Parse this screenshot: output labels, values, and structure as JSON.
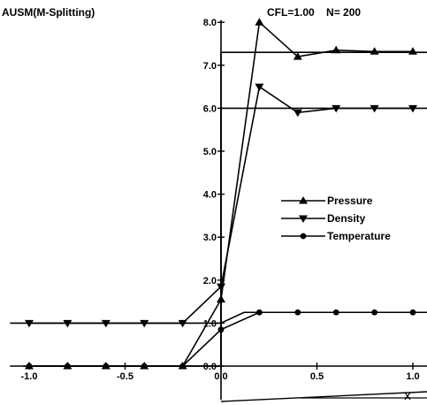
{
  "chart_data": {
    "type": "line",
    "title": "AUSM(M-Splitting)",
    "subtitle": "CFL=1.00    N= 200",
    "xlim": [
      -1.0,
      1.0
    ],
    "ylim": [
      0.0,
      8.0
    ],
    "x_ticks": [
      "-1.0",
      "-0.5",
      "0.0",
      "0.5",
      "1.0"
    ],
    "y_ticks": [
      "0.0",
      "1.0",
      "2.0",
      "3.0",
      "4.0",
      "5.0",
      "6.0",
      "7.0",
      "8.0"
    ],
    "exact": {
      "pressure": [
        [
          -1.0,
          0.0
        ],
        [
          -0.2,
          0.0
        ],
        [
          0.0,
          0.0
        ],
        [
          0.0,
          7.3
        ],
        [
          1.1,
          7.3
        ]
      ],
      "density": [
        [
          -1.1,
          1.0
        ],
        [
          0.0,
          1.0
        ],
        [
          0.0,
          6.0
        ],
        [
          1.1,
          6.0
        ]
      ],
      "temperature": [
        [
          -1.1,
          0.0
        ],
        [
          -0.2,
          0.0
        ],
        [
          0.0,
          0.0
        ],
        [
          0.0,
          1.0
        ],
        [
          0.12,
          1.25
        ],
        [
          1.1,
          1.25
        ]
      ]
    },
    "series": [
      {
        "name": "Pressure",
        "marker": "triangle-up",
        "x": [
          -1.0,
          -0.8,
          -0.6,
          -0.4,
          -0.2,
          0.0,
          0.2,
          0.4,
          0.6,
          0.8,
          1.0
        ],
        "y": [
          0.0,
          0.0,
          0.0,
          0.0,
          0.0,
          1.55,
          8.0,
          7.2,
          7.35,
          7.32,
          7.32
        ]
      },
      {
        "name": "Density",
        "marker": "triangle-down",
        "x": [
          -1.0,
          -0.8,
          -0.6,
          -0.4,
          -0.2,
          0.0,
          0.2,
          0.4,
          0.6,
          0.8,
          1.0
        ],
        "y": [
          1.0,
          1.0,
          1.0,
          1.0,
          1.0,
          1.85,
          6.5,
          5.9,
          6.0,
          6.0,
          6.0
        ]
      },
      {
        "name": "Temperature",
        "marker": "circle",
        "x": [
          -1.0,
          -0.8,
          -0.6,
          -0.4,
          -0.2,
          0.0,
          0.2,
          0.4,
          0.6,
          0.8,
          1.0
        ],
        "y": [
          0.0,
          0.0,
          0.0,
          0.0,
          0.0,
          0.85,
          1.25,
          1.25,
          1.25,
          1.25,
          1.25
        ]
      }
    ],
    "legend": {
      "placement": "center-right"
    },
    "grid": false
  }
}
